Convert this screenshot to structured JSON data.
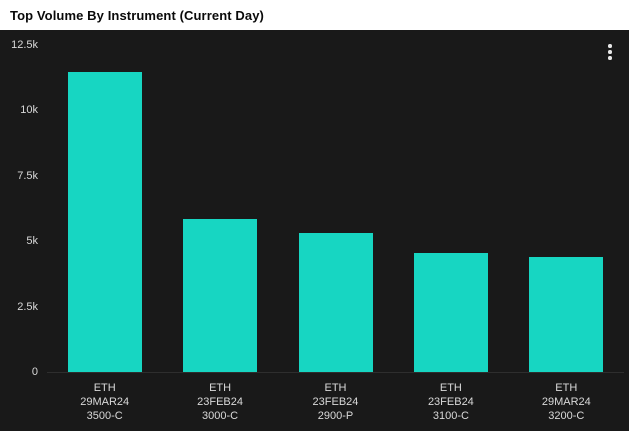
{
  "header": {
    "title": "Top Volume By Instrument (Current Day)"
  },
  "menu": {
    "icon": "kebab-vertical-menu"
  },
  "colors": {
    "bar": "#17d6c2",
    "background": "#191919",
    "header_background": "#ffffff",
    "header_text": "#0a0a0a",
    "axis_text": "#d9d9d9"
  },
  "chart_data": {
    "type": "bar",
    "title": "Top Volume By Instrument (Current Day)",
    "categories": [
      [
        "ETH",
        "29MAR24",
        "3500-C"
      ],
      [
        "ETH",
        "23FEB24",
        "3000-C"
      ],
      [
        "ETH",
        "23FEB24",
        "2900-P"
      ],
      [
        "ETH",
        "23FEB24",
        "3100-C"
      ],
      [
        "ETH",
        "29MAR24",
        "3200-C"
      ]
    ],
    "values": [
      11450,
      5850,
      5300,
      4550,
      4400
    ],
    "xlabel": "",
    "ylabel": "",
    "ylim": [
      0,
      12500
    ],
    "yticks": [
      0,
      2500,
      5000,
      7500,
      10000,
      12500
    ],
    "ytick_labels": [
      "0",
      "2.5k",
      "5k",
      "7.5k",
      "10k",
      "12.5k"
    ],
    "grid": false,
    "legend": null,
    "bar_color": "#17d6c2"
  }
}
